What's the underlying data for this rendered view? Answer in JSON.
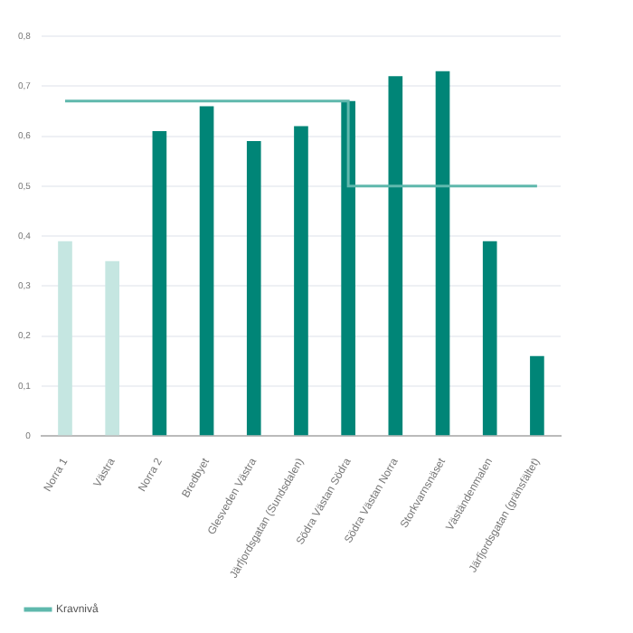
{
  "chart_data": {
    "type": "bar",
    "categories": [
      "Norra 1",
      "Västra",
      "Norra 2",
      "Bredbyet",
      "Glesveden Västra",
      "Järfjordsgatan (Sundsdalen)",
      "Södra Västan Södra",
      "Södra Västan Norra",
      "Storkvarnsnäset",
      "Väständenmalen",
      "Järfjordsgatan (gränsfältet)"
    ],
    "series": [
      {
        "colors": [
          "#c5e6e1",
          "#c5e6e1",
          "#008577",
          "#008577",
          "#008577",
          "#008577",
          "#008577",
          "#008577",
          "#008577",
          "#008577",
          "#008577"
        ],
        "values": [
          0.39,
          0.35,
          0.61,
          0.66,
          0.59,
          0.62,
          0.67,
          0.72,
          0.73,
          0.39,
          0.16
        ]
      },
      {
        "type": "step",
        "name": "Kravnivå",
        "color": "#5fb8ad",
        "values": [
          0.67,
          0.67,
          0.67,
          0.67,
          0.67,
          0.67,
          0.67,
          0.5,
          0.5,
          0.5,
          0.5
        ]
      }
    ],
    "ylim": [
      0,
      0.8
    ],
    "yticks": [
      0,
      {
        "value": 0.1,
        "label": "0,1"
      },
      {
        "value": 0.2,
        "label": "0,2"
      },
      {
        "value": 0.3,
        "label": "0,3"
      },
      {
        "value": 0.4,
        "label": "0,4"
      },
      {
        "value": 0.5,
        "label": "0,5"
      },
      {
        "value": 0.6,
        "label": "0,6"
      },
      {
        "value": 0.7,
        "label": "0,7"
      },
      {
        "value": 0.8,
        "label": "0,8"
      }
    ],
    "grid": "y",
    "legend": "bottom left"
  }
}
